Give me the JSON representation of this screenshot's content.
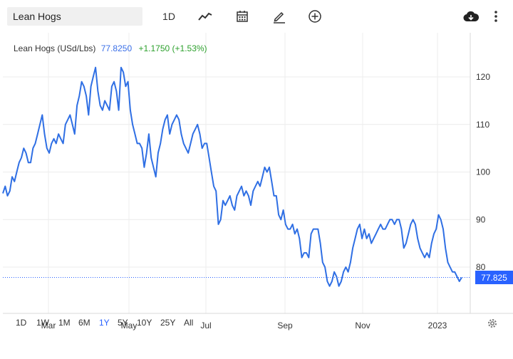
{
  "toolbar": {
    "symbol": "Lean Hogs",
    "interval": "1D",
    "icons": [
      "line-chart-icon",
      "calendar-icon",
      "pencil-icon",
      "plus-circle-icon",
      "cloud-download-icon",
      "more-icon"
    ]
  },
  "legend": {
    "name": "Lean Hogs (USd/Lbs)",
    "value": "77.8250",
    "change": "+1.1750 (+1.53%)"
  },
  "price_tag": "77.825",
  "ranges": [
    "1D",
    "1W",
    "1M",
    "6M",
    "1Y",
    "5Y",
    "10Y",
    "25Y",
    "All"
  ],
  "active_range": "1Y",
  "colors": {
    "line": "#2f6fe4",
    "accent": "#2962ff",
    "change": "#2ca02c"
  },
  "chart_data": {
    "type": "line",
    "title": "",
    "xlabel": "",
    "ylabel": "",
    "x_ticks": [
      "Mar",
      "May",
      "Jul",
      "Sep",
      "Nov",
      "2023"
    ],
    "y_ticks": [
      "80",
      "90",
      "100",
      "110",
      "120"
    ],
    "ylim": [
      70,
      130
    ],
    "last_value": 77.825,
    "series": [
      {
        "values": [
          95.5,
          97,
          95,
          96,
          99,
          98,
          100,
          102,
          103,
          105,
          104,
          102,
          102,
          105,
          106,
          108,
          110,
          112,
          108,
          105,
          104,
          106,
          107,
          106,
          108,
          107,
          106,
          110,
          111,
          112,
          110,
          108,
          114,
          116,
          119,
          118,
          116,
          112,
          118,
          120,
          122,
          117,
          114,
          113,
          115,
          114,
          113,
          118,
          119,
          117,
          113,
          122,
          121,
          118,
          119,
          113,
          110,
          108,
          106,
          106,
          105,
          101,
          104,
          108,
          103,
          101,
          99,
          104,
          106,
          109,
          111,
          112,
          108,
          110,
          111,
          112,
          111,
          108,
          106,
          105,
          104,
          106,
          108,
          109,
          110,
          108,
          105,
          106,
          106,
          103,
          100,
          97,
          96,
          89,
          90,
          94,
          93,
          94,
          95,
          93,
          92,
          95,
          96,
          97,
          95,
          96,
          95,
          93,
          96,
          97,
          98,
          97,
          99,
          101,
          100,
          101,
          98,
          95,
          95,
          91,
          90,
          92,
          89,
          88,
          88,
          89,
          87,
          88,
          86,
          82,
          83,
          83,
          82,
          87,
          88,
          88,
          88,
          85,
          81,
          80,
          77,
          76,
          77,
          79,
          78,
          76,
          77,
          79,
          80,
          79,
          81,
          84,
          86,
          88,
          89,
          86,
          88,
          86,
          87,
          85,
          86,
          87,
          88,
          89,
          88,
          88,
          89,
          90,
          90,
          89,
          90,
          90,
          88,
          84,
          85,
          87,
          89,
          90,
          89,
          86,
          84,
          83,
          82,
          83,
          82,
          85,
          87,
          88,
          91,
          90,
          88,
          84,
          81,
          80,
          79,
          79,
          78,
          77,
          77.825
        ]
      }
    ]
  }
}
